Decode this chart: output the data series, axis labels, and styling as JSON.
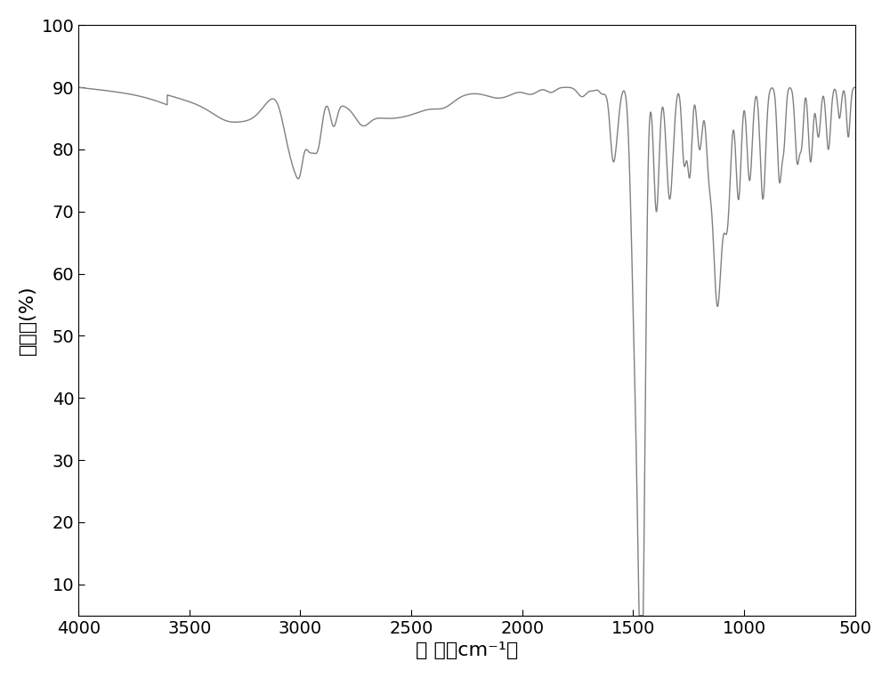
{
  "title": "",
  "xlabel": "波 数（cm⁻¹）",
  "ylabel": "透射率(%)",
  "xlim": [
    4000,
    500
  ],
  "ylim": [
    5,
    100
  ],
  "yticks": [
    10,
    20,
    30,
    40,
    50,
    60,
    70,
    80,
    90,
    100
  ],
  "xticks": [
    4000,
    3500,
    3000,
    2500,
    2000,
    1500,
    1000,
    500
  ],
  "line_color": "#808080",
  "line_width": 1.0,
  "background_color": "#ffffff",
  "xlabel_fontsize": 16,
  "ylabel_fontsize": 16,
  "tick_fontsize": 14
}
